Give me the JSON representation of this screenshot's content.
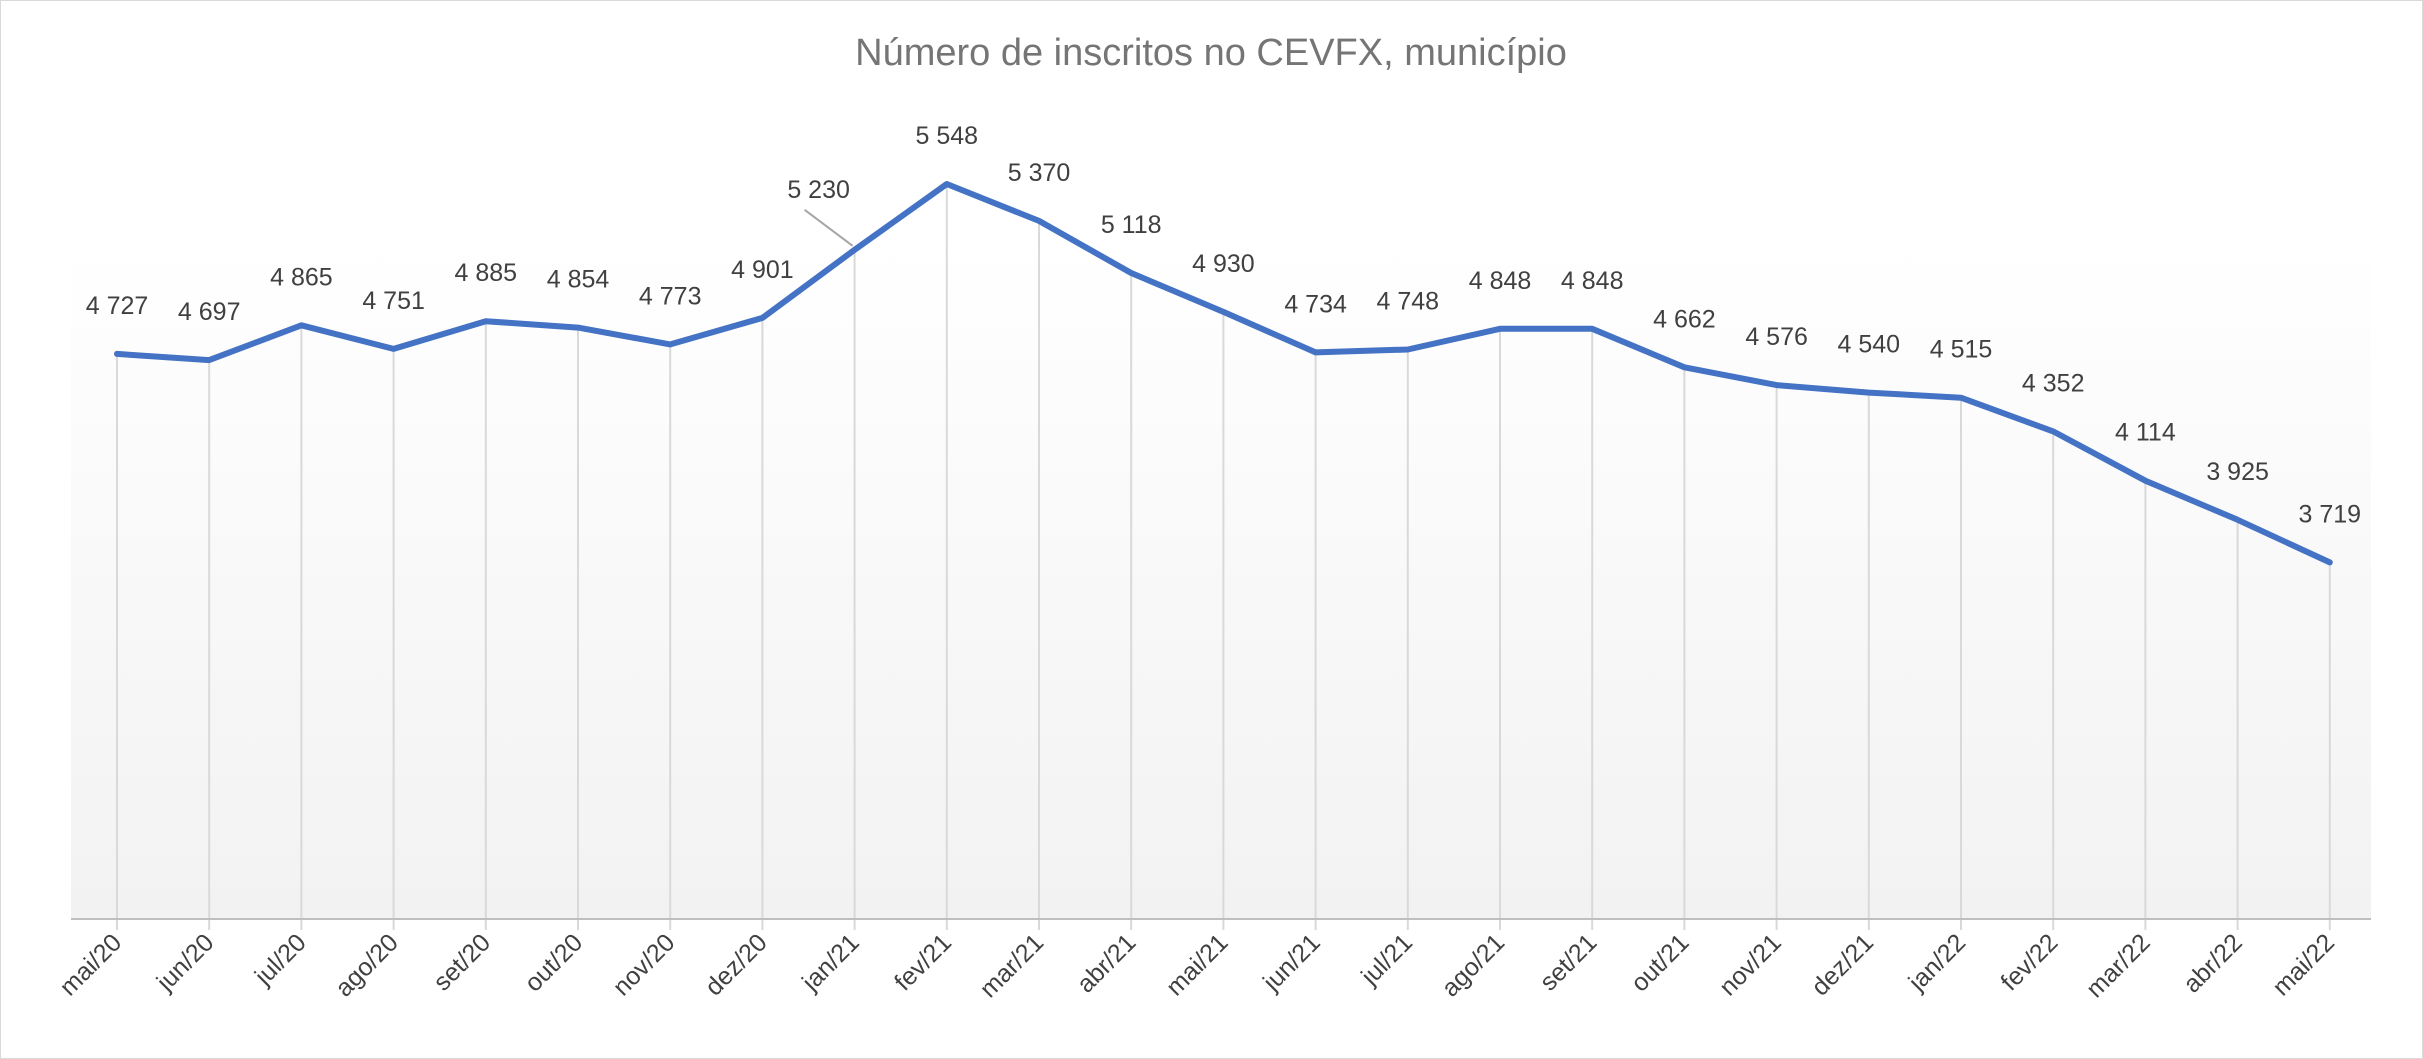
{
  "chart_data": {
    "type": "line",
    "title": "Número de inscritos no CEVFX, município",
    "xlabel": "",
    "ylabel": "",
    "categories": [
      "mai/20",
      "jun/20",
      "jul/20",
      "ago/20",
      "set/20",
      "out/20",
      "nov/20",
      "dez/20",
      "jan/21",
      "fev/21",
      "mar/21",
      "abr/21",
      "mai/21",
      "jun/21",
      "jul/21",
      "ago/21",
      "set/21",
      "out/21",
      "nov/21",
      "dez/21",
      "jan/22",
      "fev/22",
      "mar/22",
      "abr/22",
      "mai/22"
    ],
    "series": [
      {
        "values": [
          4727,
          4697,
          4865,
          4751,
          4885,
          4854,
          4773,
          4901,
          5230,
          5548,
          5370,
          5118,
          4930,
          4734,
          4748,
          4848,
          4848,
          4662,
          4576,
          4540,
          4515,
          4352,
          4114,
          3925,
          3719
        ],
        "labels": [
          "4 727",
          "4 697",
          "4 865",
          "4 751",
          "4 885",
          "4 854",
          "4 773",
          "4 901",
          "5 230",
          "5 548",
          "5 370",
          "5 118",
          "4 930",
          "4 734",
          "4 748",
          "4 848",
          "4 848",
          "4 662",
          "4 576",
          "4 540",
          "4 515",
          "4 352",
          "4 114",
          "3 925",
          "3 719"
        ],
        "color": "#4472c4"
      }
    ],
    "ylim": [
      2000,
      5640
    ],
    "grid": "vertical",
    "legend": "none",
    "background_gradient": [
      "#ffffff",
      "#f2f2f2"
    ],
    "gridline_color": "#d9d9d9",
    "axis_color": "#bfbfbf"
  }
}
